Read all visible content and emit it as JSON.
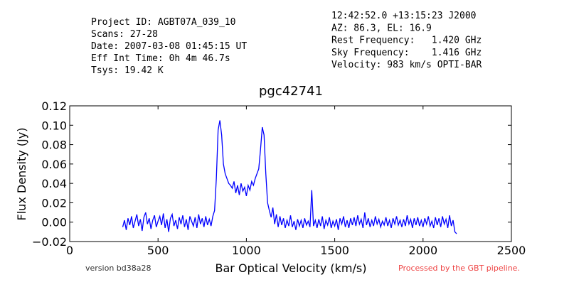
{
  "chart_data": {
    "type": "line",
    "title": "pgc42741",
    "xlabel": "Bar Optical Velocity (km/s)",
    "ylabel": "Flux Density (Jy)",
    "info_left": [
      "Project ID: AGBT07A_039_10",
      "Scans: 27-28",
      "Date: 2007-03-08 01:45:15 UT",
      "Eff Int Time: 0h 4m 46.7s",
      "Tsys: 19.42 K"
    ],
    "info_right": [
      "12:42:52.0 +13:15:23 J2000",
      "AZ: 86.3, EL: 16.9",
      "Rest Frequency:   1.420 GHz",
      "Sky Frequency:    1.416 GHz",
      "Velocity: 983 km/s OPTI-BAR"
    ],
    "footer_left": "version bd38a28",
    "footer_right": "Processed by the GBT pipeline.",
    "xlim": [
      0,
      2500
    ],
    "xticks": [
      0,
      500,
      1000,
      1500,
      2000,
      2500
    ],
    "ylim": [
      -0.02,
      0.12
    ],
    "yticks": [
      {
        "value": -0.02,
        "label": "−0.02"
      },
      {
        "value": 0,
        "label": "0.00"
      },
      0.02,
      0.04,
      0.06,
      0.08,
      {
        "value": 0.1,
        "label": "0.10"
      },
      0.12
    ],
    "x": [
      300,
      310,
      320,
      330,
      340,
      350,
      360,
      370,
      380,
      390,
      400,
      410,
      420,
      430,
      440,
      450,
      460,
      470,
      480,
      490,
      500,
      510,
      520,
      530,
      540,
      550,
      560,
      570,
      580,
      590,
      600,
      610,
      620,
      630,
      640,
      650,
      660,
      670,
      680,
      690,
      700,
      710,
      720,
      730,
      740,
      750,
      760,
      770,
      780,
      790,
      800,
      810,
      820,
      830,
      840,
      850,
      860,
      870,
      880,
      890,
      900,
      910,
      920,
      930,
      940,
      950,
      960,
      970,
      980,
      990,
      1000,
      1010,
      1020,
      1030,
      1040,
      1050,
      1060,
      1070,
      1080,
      1090,
      1100,
      1110,
      1120,
      1130,
      1140,
      1150,
      1160,
      1170,
      1180,
      1190,
      1200,
      1210,
      1220,
      1230,
      1240,
      1250,
      1260,
      1270,
      1280,
      1290,
      1300,
      1310,
      1320,
      1330,
      1340,
      1350,
      1360,
      1370,
      1380,
      1390,
      1400,
      1410,
      1420,
      1430,
      1440,
      1450,
      1460,
      1470,
      1480,
      1490,
      1500,
      1510,
      1520,
      1530,
      1540,
      1550,
      1560,
      1570,
      1580,
      1590,
      1600,
      1610,
      1620,
      1630,
      1640,
      1650,
      1660,
      1670,
      1680,
      1690,
      1700,
      1710,
      1720,
      1730,
      1740,
      1750,
      1760,
      1770,
      1780,
      1790,
      1800,
      1810,
      1820,
      1830,
      1840,
      1850,
      1860,
      1870,
      1880,
      1890,
      1900,
      1910,
      1920,
      1930,
      1940,
      1950,
      1960,
      1970,
      1980,
      1990,
      2000,
      2010,
      2020,
      2030,
      2040,
      2050,
      2060,
      2070,
      2080,
      2090,
      2100,
      2110,
      2120,
      2130,
      2140,
      2150,
      2160,
      2170,
      2180,
      2190
    ],
    "series": [
      {
        "name": "pgc42741",
        "color": "#0000ff",
        "values": [
          -0.005,
          0.002,
          -0.008,
          0.004,
          -0.003,
          0.006,
          -0.006,
          0.001,
          0.008,
          -0.004,
          0.003,
          -0.009,
          0.005,
          0.01,
          -0.002,
          0.004,
          -0.007,
          0.002,
          0.007,
          -0.005,
          0.001,
          0.006,
          -0.003,
          0.009,
          -0.006,
          0.003,
          -0.01,
          0.004,
          0.008,
          -0.004,
          0.002,
          -0.007,
          0.005,
          -0.002,
          0.007,
          -0.005,
          0.003,
          -0.008,
          0.006,
          0.001,
          -0.004,
          0.005,
          -0.006,
          0.008,
          -0.002,
          0.004,
          -0.005,
          0.006,
          -0.003,
          0.003,
          -0.004,
          0.006,
          0.012,
          0.045,
          0.095,
          0.105,
          0.09,
          0.06,
          0.05,
          0.045,
          0.04,
          0.038,
          0.035,
          0.042,
          0.03,
          0.038,
          0.028,
          0.04,
          0.032,
          0.036,
          0.027,
          0.038,
          0.033,
          0.042,
          0.038,
          0.045,
          0.05,
          0.055,
          0.075,
          0.098,
          0.09,
          0.05,
          0.02,
          0.012,
          0.005,
          0.015,
          -0.002,
          0.008,
          -0.005,
          0.006,
          -0.003,
          0.004,
          -0.006,
          0.002,
          -0.004,
          0.007,
          -0.005,
          0.001,
          -0.008,
          0.003,
          -0.004,
          0.002,
          -0.006,
          0.004,
          -0.003,
          0.001,
          -0.005,
          0.033,
          -0.004,
          0.002,
          -0.006,
          0.003,
          -0.004,
          0.006,
          -0.007,
          0.002,
          -0.003,
          0.005,
          -0.006,
          0.001,
          -0.004,
          0.003,
          -0.008,
          0.004,
          -0.002,
          0.006,
          -0.005,
          0.002,
          -0.006,
          0.004,
          -0.003,
          0.005,
          -0.004,
          0.007,
          -0.002,
          0.003,
          -0.006,
          0.01,
          -0.003,
          0.004,
          -0.005,
          0.002,
          -0.004,
          0.006,
          -0.002,
          0.003,
          -0.005,
          0.001,
          -0.003,
          0.005,
          -0.004,
          0.002,
          -0.006,
          0.004,
          -0.002,
          0.006,
          -0.003,
          0.002,
          -0.005,
          0.003,
          -0.004,
          0.007,
          -0.002,
          0.003,
          -0.006,
          0.004,
          -0.003,
          0.005,
          -0.004,
          0.002,
          -0.005,
          0.004,
          -0.002,
          0.006,
          -0.004,
          0.001,
          -0.006,
          0.005,
          -0.003,
          0.004,
          -0.005,
          0.006,
          -0.002,
          0.003,
          -0.006,
          0.007,
          -0.004,
          0.002,
          -0.01,
          -0.012
        ]
      }
    ],
    "footer_right_color": "#ee4444"
  }
}
